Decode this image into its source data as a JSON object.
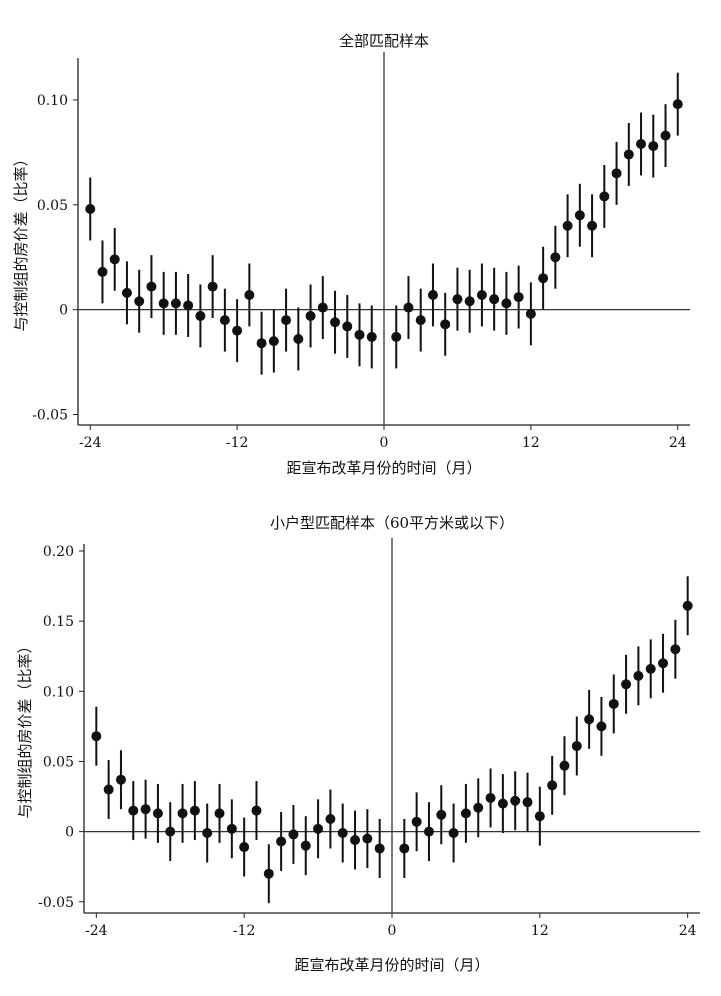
{
  "chart_data": [
    {
      "type": "scatter",
      "title": "全部匹配样本",
      "xlabel": "距宣布改革月份的时间（月）",
      "ylabel": "与控制组的房价差（比率）",
      "xlim": [
        -25,
        25
      ],
      "ylim": [
        -0.055,
        0.12
      ],
      "xticks": [
        "-24",
        "-12",
        "0",
        "12",
        "24"
      ],
      "yticks": [
        "-0.05",
        "0",
        "0.05",
        "0.10"
      ],
      "ytick_values": [
        -0.05,
        0,
        0.05,
        0.1
      ],
      "x": [
        -24,
        -23,
        -22,
        -21,
        -20,
        -19,
        -18,
        -17,
        -16,
        -15,
        -14,
        -13,
        -12,
        -11,
        -10,
        -9,
        -8,
        -7,
        -6,
        -5,
        -4,
        -3,
        -2,
        -1,
        1,
        2,
        3,
        4,
        5,
        6,
        7,
        8,
        9,
        10,
        11,
        12,
        13,
        14,
        15,
        16,
        17,
        18,
        19,
        20,
        21,
        22,
        23,
        24
      ],
      "y": [
        0.048,
        0.018,
        0.024,
        0.008,
        0.004,
        0.011,
        0.003,
        0.003,
        0.002,
        -0.003,
        0.011,
        -0.005,
        -0.01,
        0.007,
        -0.016,
        -0.015,
        -0.005,
        -0.014,
        -0.003,
        0.001,
        -0.006,
        -0.008,
        -0.012,
        -0.013,
        -0.013,
        0.001,
        -0.005,
        0.007,
        -0.007,
        0.005,
        0.004,
        0.007,
        0.005,
        0.003,
        0.006,
        -0.002,
        0.015,
        0.025,
        0.04,
        0.045,
        0.04,
        0.054,
        0.065,
        0.074,
        0.079,
        0.078,
        0.083,
        0.098
      ],
      "ci_halfwidth": 0.015,
      "grid": false
    },
    {
      "type": "scatter",
      "title": "小户型匹配样本（60平方米或以下）",
      "xlabel": "距宣布改革月份的时间（月）",
      "ylabel": "与控制组的房价差（比率）",
      "xlim": [
        -25,
        25
      ],
      "ylim": [
        -0.058,
        0.205
      ],
      "xticks": [
        "-24",
        "-12",
        "0",
        "12",
        "24"
      ],
      "yticks": [
        "-0.05",
        "0",
        "0.05",
        "0.10",
        "0.15",
        "0.20"
      ],
      "ytick_values": [
        -0.05,
        0,
        0.05,
        0.1,
        0.15,
        0.2
      ],
      "x": [
        -24,
        -23,
        -22,
        -21,
        -20,
        -19,
        -18,
        -17,
        -16,
        -15,
        -14,
        -13,
        -12,
        -11,
        -10,
        -9,
        -8,
        -7,
        -6,
        -5,
        -4,
        -3,
        -2,
        -1,
        1,
        2,
        3,
        4,
        5,
        6,
        7,
        8,
        9,
        10,
        11,
        12,
        13,
        14,
        15,
        16,
        17,
        18,
        19,
        20,
        21,
        22,
        23,
        24
      ],
      "y": [
        0.068,
        0.03,
        0.037,
        0.015,
        0.016,
        0.013,
        0.0,
        0.013,
        0.015,
        -0.001,
        0.013,
        0.002,
        -0.011,
        0.015,
        -0.03,
        -0.007,
        -0.002,
        -0.01,
        0.002,
        0.009,
        -0.001,
        -0.006,
        -0.005,
        -0.012,
        -0.012,
        0.007,
        0.0,
        0.012,
        -0.001,
        0.013,
        0.017,
        0.024,
        0.02,
        0.022,
        0.021,
        0.011,
        0.033,
        0.047,
        0.061,
        0.08,
        0.075,
        0.091,
        0.105,
        0.111,
        0.116,
        0.12,
        0.13,
        0.161
      ],
      "ci_halfwidth": 0.021,
      "grid": false
    }
  ]
}
